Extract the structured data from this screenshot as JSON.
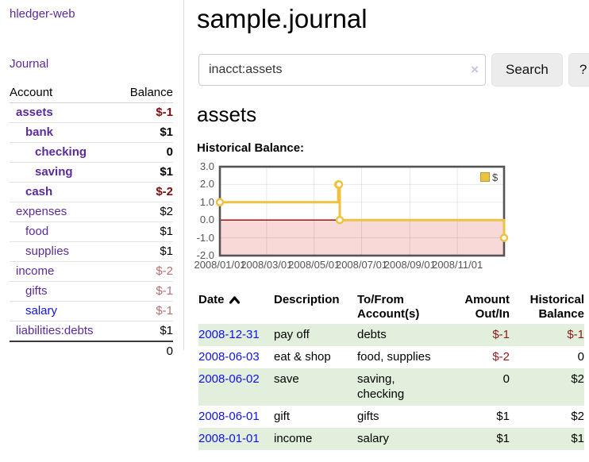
{
  "colors": {
    "purple": "#5b2a9b",
    "blue": "#1012e6",
    "neg_strong": "#7f0e0e",
    "neg_soft": "#b5706f",
    "table_neg": "#8b1a1a",
    "row_green": "#e2efdc",
    "gold": "#edc240",
    "pink": "#f9d8d8",
    "zero_line": "#8b0000",
    "chart_border": "#545454",
    "tick_text": "#545454"
  },
  "app": {
    "title": "hledger-web"
  },
  "nav": {
    "journal": "Journal"
  },
  "sidebar": {
    "headers": {
      "account": "Account",
      "balance": "Balance"
    },
    "accounts": [
      {
        "name": "assets",
        "balance": "$-1",
        "indent": 1,
        "bold": true,
        "neg": "strong"
      },
      {
        "name": "bank",
        "balance": "$1",
        "indent": 2,
        "bold": true
      },
      {
        "name": "checking",
        "balance": "0",
        "indent": 3,
        "bold": true
      },
      {
        "name": "saving",
        "balance": "$1",
        "indent": 3,
        "bold": true
      },
      {
        "name": "cash",
        "balance": "$-2",
        "indent": 2,
        "bold": true,
        "neg": "strong"
      },
      {
        "name": "expenses",
        "balance": "$2",
        "indent": 1
      },
      {
        "name": "food",
        "balance": "$1",
        "indent": 2
      },
      {
        "name": "supplies",
        "balance": "$1",
        "indent": 2
      },
      {
        "name": "income",
        "balance": "$-2",
        "indent": 1,
        "neg": "soft"
      },
      {
        "name": "gifts",
        "balance": "$-1",
        "indent": 2,
        "neg": "soft"
      },
      {
        "name": "salary",
        "balance": "$-1",
        "indent": 2,
        "neg": "soft",
        "link": "blue"
      },
      {
        "name": "liabilities:debts",
        "balance": "$1",
        "indent": 1
      }
    ],
    "total": "0"
  },
  "header": {
    "title": "sample.journal"
  },
  "search": {
    "value": "inacct:assets",
    "clear_icon": "×",
    "button_label": "Search",
    "help_label": "?"
  },
  "register": {
    "heading": "assets",
    "chart_title": "Historical Balance:"
  },
  "chart_data": {
    "type": "line",
    "step": true,
    "title": "",
    "xlabel": "",
    "ylabel": "",
    "xlim": [
      "2008-01-01",
      "2008-12-31"
    ],
    "ylim": [
      -2,
      3
    ],
    "yticks": [
      3.0,
      2.0,
      1.0,
      0.0,
      -1.0,
      -2.0
    ],
    "xticks": [
      "2008/01/01",
      "2008/03/01",
      "2008/05/01",
      "2008/07/01",
      "2008/09/01",
      "2008/11/01"
    ],
    "series": [
      {
        "name": "$",
        "x": [
          "2008-01-01",
          "2008-06-01",
          "2008-06-02",
          "2008-06-03",
          "2008-12-31"
        ],
        "values": [
          1,
          2,
          2,
          0,
          -1
        ]
      }
    ],
    "legend": {
      "position": "top-right",
      "label": "$"
    },
    "grid": true,
    "negative_region": {
      "below": 0,
      "color": "#f9d8d8"
    },
    "zero_line_color": "#8b0000"
  },
  "table": {
    "headers": [
      {
        "label": "Date",
        "sort": "asc"
      },
      {
        "label": "Description"
      },
      {
        "label": "To/From\nAccount(s)"
      },
      {
        "label": "Amount\nOut/In",
        "align": "right"
      },
      {
        "label": "Historical\nBalance",
        "align": "right"
      }
    ],
    "rows": [
      {
        "date": "2008-12-31",
        "description": "pay off",
        "accounts": "debts",
        "amount": "$-1",
        "balance": "$-1",
        "amount_neg": true,
        "balance_neg": true,
        "shaded": true
      },
      {
        "date": "2008-06-03",
        "description": "eat & shop",
        "accounts": "food, supplies",
        "amount": "$-2",
        "balance": "0",
        "amount_neg": true,
        "shaded": false
      },
      {
        "date": "2008-06-02",
        "description": "save",
        "accounts": "saving,\nchecking",
        "amount": "0",
        "balance": "$2",
        "shaded": true
      },
      {
        "date": "2008-06-01",
        "description": "gift",
        "accounts": "gifts",
        "amount": "$1",
        "balance": "$2",
        "shaded": false
      },
      {
        "date": "2008-01-01",
        "description": "income",
        "accounts": "salary",
        "amount": "$1",
        "balance": "$1",
        "shaded": true
      }
    ]
  }
}
